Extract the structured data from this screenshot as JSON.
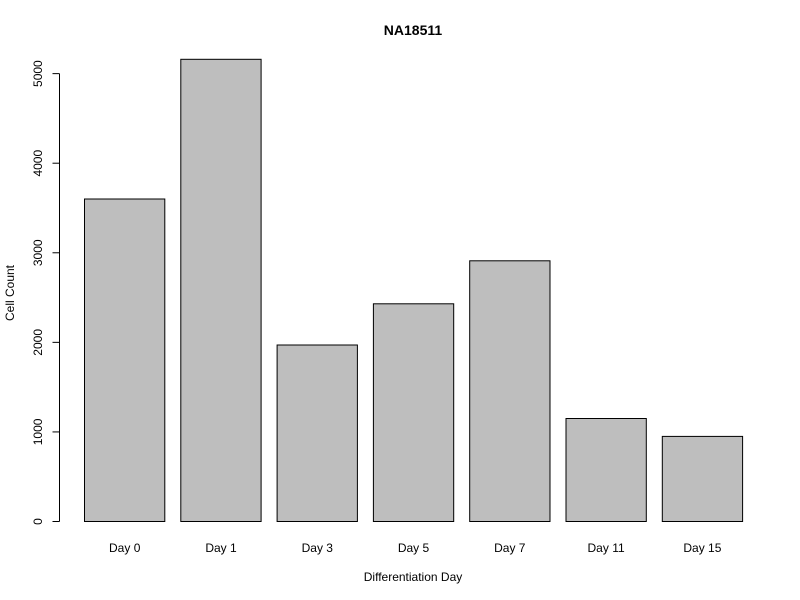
{
  "chart_data": {
    "type": "bar",
    "title": "NA18511",
    "xlabel": "Differentiation Day",
    "ylabel": "Cell Count",
    "categories": [
      "Day 0",
      "Day 1",
      "Day 3",
      "Day 5",
      "Day 7",
      "Day 11",
      "Day 15"
    ],
    "values": [
      3600,
      5160,
      1970,
      2430,
      2910,
      1150,
      950
    ],
    "ylim": [
      0,
      5160
    ],
    "yticks": [
      0,
      1000,
      2000,
      3000,
      4000,
      5000
    ],
    "ytick_labels": [
      "0",
      "1000",
      "2000",
      "3000",
      "4000",
      "5000"
    ],
    "grid": false,
    "legend": "none",
    "colors": {
      "bar_fill": "#bebebe",
      "bar_stroke": "#000000",
      "axis": "#000000",
      "background": "#ffffff"
    }
  }
}
